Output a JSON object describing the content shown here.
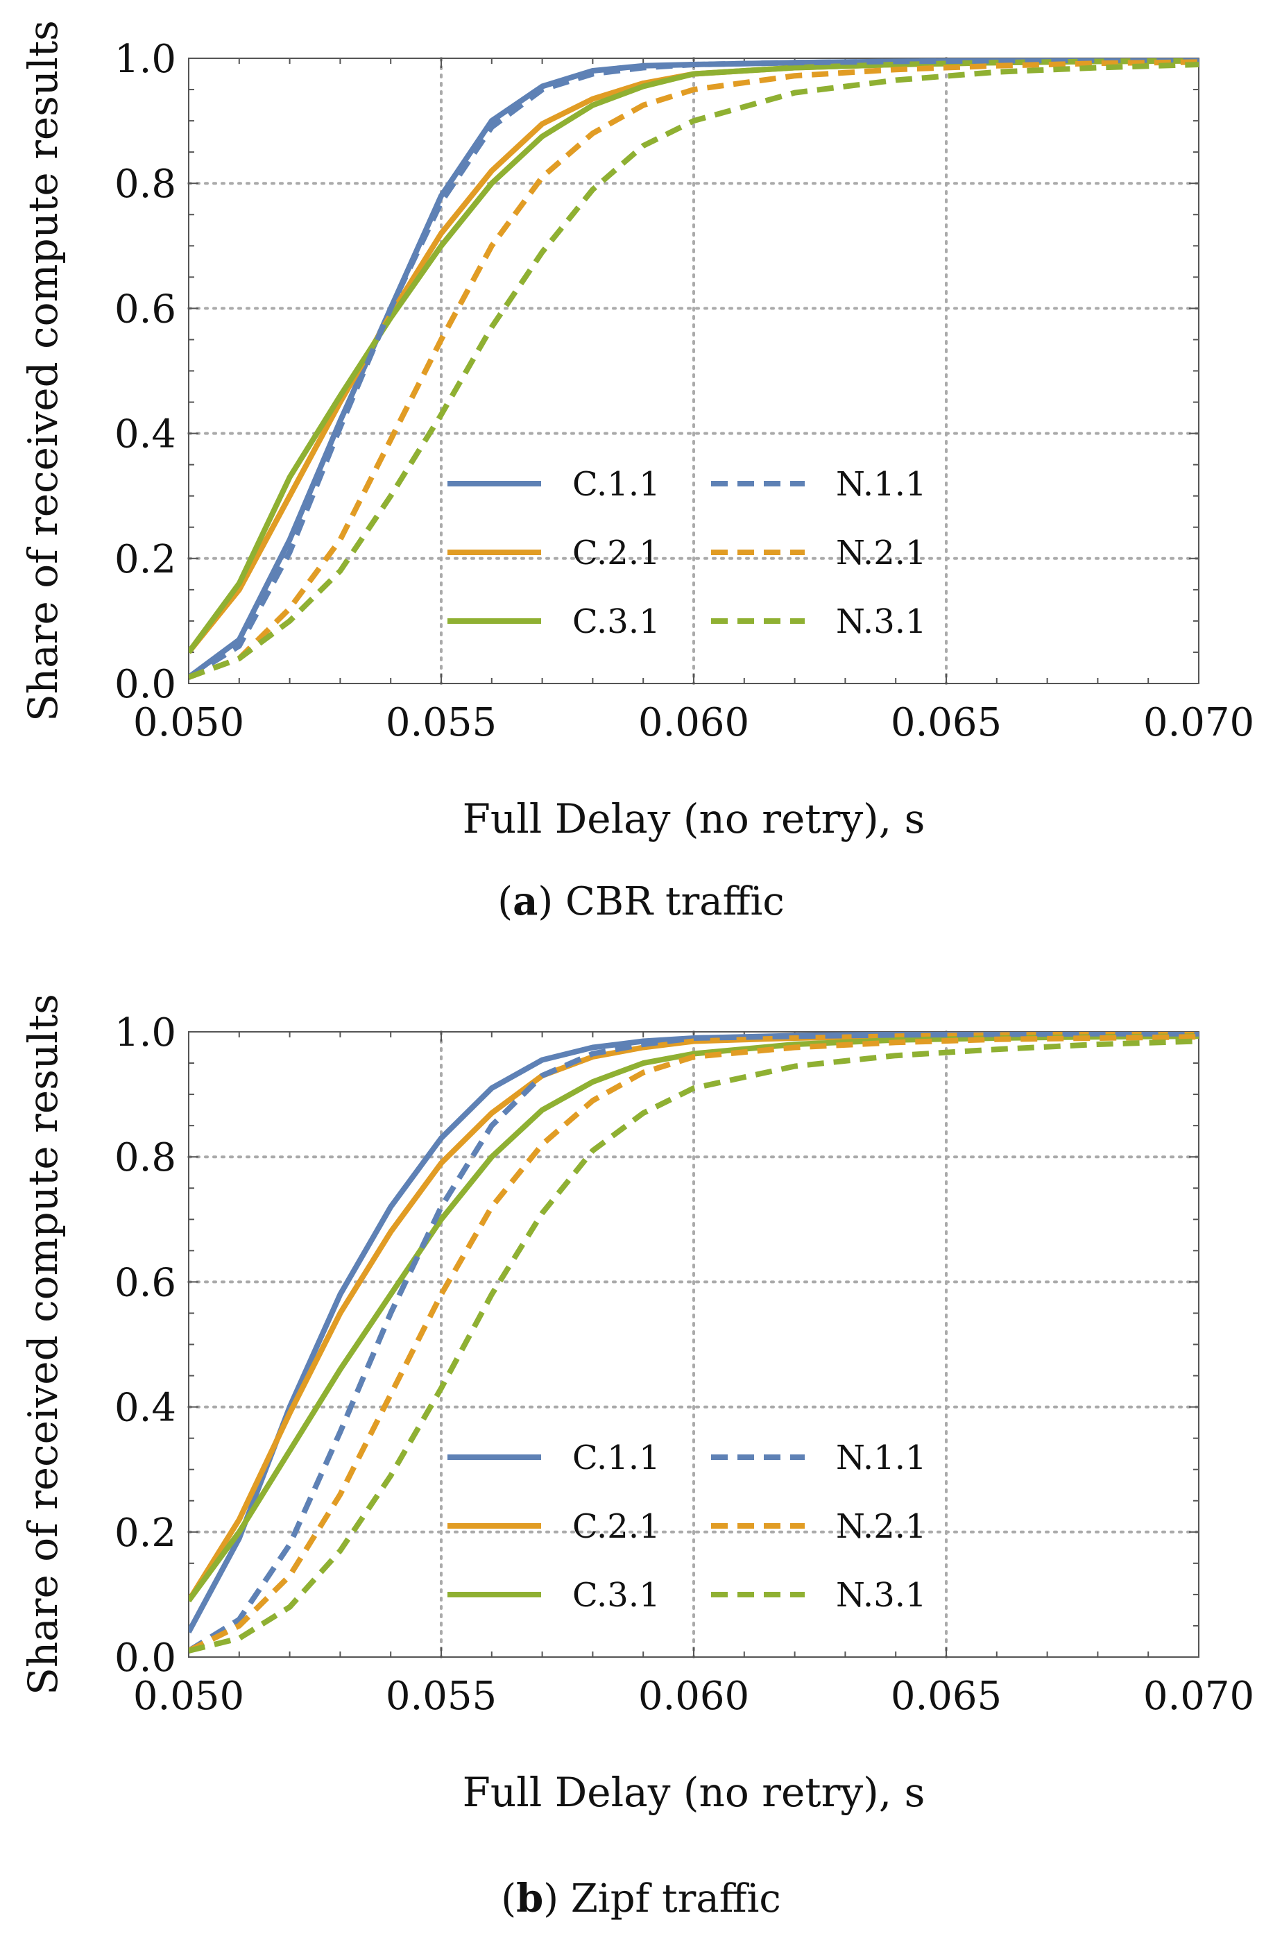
{
  "figure": {
    "captions": [
      {
        "letter": "(a)",
        "text": "CBR traffic"
      },
      {
        "letter": "(b)",
        "text": "Zipf traffic"
      }
    ]
  },
  "series_styles": {
    "C.1.1": {
      "color": "#5E81B5",
      "dash": "solid"
    },
    "C.2.1": {
      "color": "#E19C24",
      "dash": "solid"
    },
    "C.3.1": {
      "color": "#8FB032",
      "dash": "solid"
    },
    "N.1.1": {
      "color": "#5E81B5",
      "dash": "dashed"
    },
    "N.2.1": {
      "color": "#E19C24",
      "dash": "dashed"
    },
    "N.3.1": {
      "color": "#8FB032",
      "dash": "dashed"
    }
  },
  "chart_data": [
    {
      "type": "line",
      "caption": "(a) CBR traffic",
      "xlabel": "Full Delay (no retry), s",
      "ylabel": "Share of received compute results",
      "xlim": [
        0.05,
        0.07
      ],
      "ylim": [
        0,
        1
      ],
      "xticks": [
        "0.050",
        "0.055",
        "0.060",
        "0.065",
        "0.070"
      ],
      "yticks": [
        "0.0",
        "0.2",
        "0.4",
        "0.6",
        "0.8",
        "1.0"
      ],
      "grid": true,
      "legend_position": "bottom-right",
      "x": [
        0.05,
        0.051,
        0.052,
        0.053,
        0.054,
        0.055,
        0.056,
        0.057,
        0.058,
        0.059,
        0.06,
        0.062,
        0.064,
        0.066,
        0.068,
        0.07
      ],
      "series": [
        {
          "name": "C.1.1",
          "values": [
            0.01,
            0.07,
            0.23,
            0.42,
            0.6,
            0.78,
            0.9,
            0.955,
            0.98,
            0.988,
            0.99,
            0.993,
            0.995,
            0.996,
            0.997,
            0.997
          ]
        },
        {
          "name": "C.2.1",
          "values": [
            0.05,
            0.15,
            0.3,
            0.45,
            0.59,
            0.72,
            0.82,
            0.895,
            0.935,
            0.96,
            0.975,
            0.985,
            0.99,
            0.993,
            0.995,
            0.996
          ]
        },
        {
          "name": "C.3.1",
          "values": [
            0.05,
            0.16,
            0.33,
            0.46,
            0.585,
            0.7,
            0.8,
            0.875,
            0.925,
            0.955,
            0.975,
            0.985,
            0.99,
            0.993,
            0.995,
            0.996
          ]
        },
        {
          "name": "N.1.1",
          "values": [
            0.01,
            0.06,
            0.21,
            0.41,
            0.6,
            0.77,
            0.89,
            0.95,
            0.975,
            0.985,
            0.99,
            0.993,
            0.995,
            0.996,
            0.997,
            0.997
          ]
        },
        {
          "name": "N.2.1",
          "values": [
            0.01,
            0.04,
            0.12,
            0.23,
            0.39,
            0.55,
            0.7,
            0.81,
            0.88,
            0.925,
            0.95,
            0.972,
            0.982,
            0.988,
            0.992,
            0.994
          ]
        },
        {
          "name": "N.3.1",
          "values": [
            0.01,
            0.04,
            0.1,
            0.18,
            0.3,
            0.43,
            0.57,
            0.69,
            0.79,
            0.86,
            0.9,
            0.945,
            0.965,
            0.978,
            0.985,
            0.99
          ]
        }
      ]
    },
    {
      "type": "line",
      "caption": "(b) Zipf traffic",
      "xlabel": "Full Delay (no retry), s",
      "ylabel": "Share of received compute results",
      "xlim": [
        0.05,
        0.07
      ],
      "ylim": [
        0,
        1
      ],
      "xticks": [
        "0.050",
        "0.055",
        "0.060",
        "0.065",
        "0.070"
      ],
      "yticks": [
        "0.0",
        "0.2",
        "0.4",
        "0.6",
        "0.8",
        "1.0"
      ],
      "grid": true,
      "legend_position": "bottom-right",
      "x": [
        0.05,
        0.051,
        0.052,
        0.053,
        0.054,
        0.055,
        0.056,
        0.057,
        0.058,
        0.059,
        0.06,
        0.062,
        0.064,
        0.066,
        0.068,
        0.07
      ],
      "series": [
        {
          "name": "C.1.1",
          "values": [
            0.04,
            0.19,
            0.4,
            0.58,
            0.72,
            0.83,
            0.91,
            0.955,
            0.975,
            0.985,
            0.99,
            0.994,
            0.996,
            0.997,
            0.997,
            0.997
          ]
        },
        {
          "name": "C.2.1",
          "values": [
            0.09,
            0.22,
            0.39,
            0.55,
            0.68,
            0.79,
            0.87,
            0.93,
            0.96,
            0.975,
            0.985,
            0.99,
            0.993,
            0.995,
            0.996,
            0.996
          ]
        },
        {
          "name": "C.3.1",
          "values": [
            0.09,
            0.2,
            0.33,
            0.46,
            0.58,
            0.7,
            0.8,
            0.875,
            0.92,
            0.95,
            0.965,
            0.98,
            0.987,
            0.99,
            0.992,
            0.993
          ]
        },
        {
          "name": "N.1.1",
          "values": [
            0.01,
            0.06,
            0.18,
            0.36,
            0.55,
            0.72,
            0.85,
            0.93,
            0.965,
            0.98,
            0.99,
            0.993,
            0.995,
            0.996,
            0.997,
            0.997
          ]
        },
        {
          "name": "N.2.1",
          "values": [
            0.01,
            0.05,
            0.13,
            0.26,
            0.42,
            0.58,
            0.72,
            0.82,
            0.89,
            0.935,
            0.96,
            0.975,
            0.983,
            0.988,
            0.99,
            0.992
          ]
        },
        {
          "name": "N.3.1",
          "values": [
            0.01,
            0.03,
            0.08,
            0.17,
            0.29,
            0.43,
            0.58,
            0.71,
            0.81,
            0.87,
            0.91,
            0.945,
            0.962,
            0.972,
            0.98,
            0.985
          ]
        }
      ]
    }
  ]
}
